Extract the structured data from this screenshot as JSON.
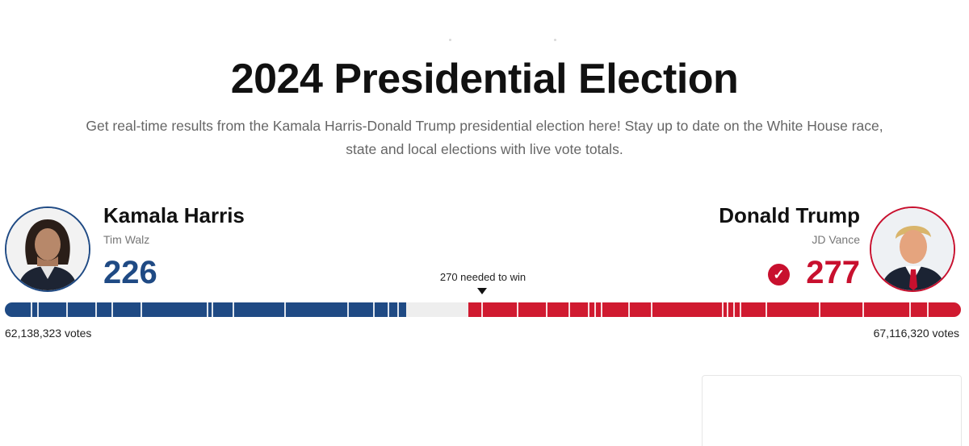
{
  "header": {
    "title": "2024 Presidential Election",
    "subtitle_line1": "Get real-time results from the Kamala Harris-Donald Trump presidential election here! Stay up to date on the White House race,",
    "subtitle_line2": "state and local elections with live vote totals."
  },
  "candidates": {
    "harris": {
      "name": "Kamala Harris",
      "running_mate": "Tim Walz",
      "electoral_votes": "226",
      "popular_votes": "62,138,323 votes",
      "color": "#1f4a84"
    },
    "trump": {
      "name": "Donald Trump",
      "running_mate": "JD Vance",
      "electoral_votes": "277",
      "popular_votes": "67,116,320 votes",
      "color": "#c8102e",
      "winner_mark": "✓"
    }
  },
  "threshold": {
    "label": "270 needed to win",
    "value": 270,
    "total": 538
  },
  "icons": {
    "winner": "check-circle-icon",
    "threshold": "triangle-down-icon"
  }
}
